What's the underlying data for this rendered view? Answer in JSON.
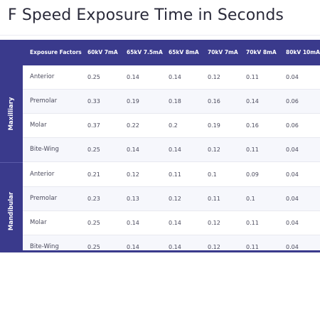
{
  "title": "F Speed Exposure Time in Seconds",
  "table": {
    "columns": [
      "Exposure Factors",
      "60kV 7mA",
      "65kV 7.5mA",
      "65kV 8mA",
      "70kV 7mA",
      "70kV 8mA",
      "80kV 10mA"
    ],
    "groups": [
      {
        "label": "Maxilliary",
        "rows": [
          {
            "name": "Anterior",
            "values": [
              "0.25",
              "0.14",
              "0.14",
              "0.12",
              "0.11",
              "0.04"
            ]
          },
          {
            "name": "Premolar",
            "values": [
              "0.33",
              "0.19",
              "0.18",
              "0.16",
              "0.14",
              "0.06"
            ]
          },
          {
            "name": "Molar",
            "values": [
              "0.37",
              "0.22",
              "0.2",
              "0.19",
              "0.16",
              "0.06"
            ]
          },
          {
            "name": "Bite-Wing",
            "values": [
              "0.25",
              "0.14",
              "0.14",
              "0.12",
              "0.11",
              "0.04"
            ]
          }
        ]
      },
      {
        "label": "Mandibular",
        "rows": [
          {
            "name": "Anterior",
            "values": [
              "0.21",
              "0.12",
              "0.11",
              "0.1",
              "0.09",
              "0.04"
            ]
          },
          {
            "name": "Premolar",
            "values": [
              "0.23",
              "0.13",
              "0.12",
              "0.11",
              "0.1",
              "0.04"
            ]
          },
          {
            "name": "Molar",
            "values": [
              "0.25",
              "0.14",
              "0.14",
              "0.12",
              "0.11",
              "0.04"
            ]
          },
          {
            "name": "Bite-Wing",
            "values": [
              "0.25",
              "0.14",
              "0.14",
              "0.12",
              "0.11",
              "0.04"
            ]
          }
        ]
      }
    ]
  },
  "colors": {
    "header_bg": "#3a3a8c",
    "header_text": "#ffffff",
    "row_alt_bg": "#f6f7fc"
  }
}
